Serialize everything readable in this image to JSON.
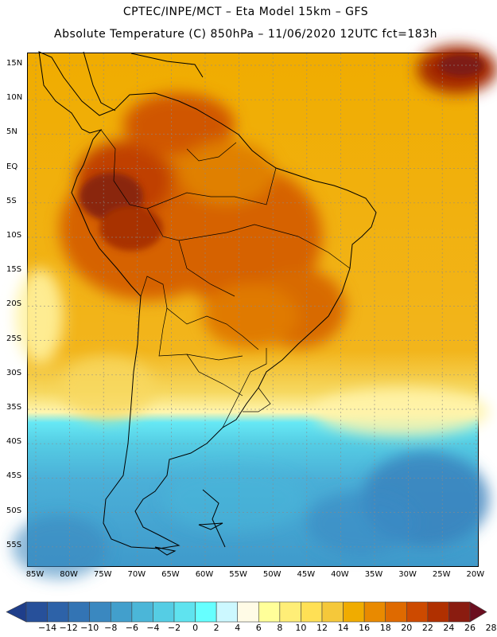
{
  "header": {
    "line1": "CPTEC/INPE/MCT –  Eta Model 15km – GFS",
    "line2": "Absolute Temperature (C) 850hPa – 11/06/2020 12UTC fct=183h"
  },
  "map": {
    "region": "South America",
    "variable": "Absolute Temperature (C)",
    "level": "850hPa",
    "lat_labels": [
      "15N",
      "10N",
      "5N",
      "EQ",
      "5S",
      "10S",
      "15S",
      "20S",
      "25S",
      "30S",
      "35S",
      "40S",
      "45S",
      "50S",
      "55S"
    ],
    "lon_labels": [
      "85W",
      "80W",
      "75W",
      "70W",
      "65W",
      "60W",
      "55W",
      "50W",
      "45W",
      "40W",
      "35W",
      "30W",
      "25W",
      "20W"
    ]
  },
  "colorbar": {
    "labels": [
      "-14",
      "-12",
      "-10",
      "-8",
      "-6",
      "-4",
      "-2",
      "0",
      "2",
      "4",
      "6",
      "8",
      "10",
      "12",
      "14",
      "16",
      "18",
      "20",
      "22",
      "24",
      "26",
      "28"
    ],
    "colors": [
      "#1f3e8a",
      "#27509a",
      "#2d62a8",
      "#3374b4",
      "#3a88c0",
      "#429fcc",
      "#4bb6d8",
      "#55cde4",
      "#5fe3ef",
      "#66ffff",
      "#ccf8ff",
      "#fffbe6",
      "#ffff99",
      "#ffee77",
      "#ffe055",
      "#f5c83a",
      "#f0ac00",
      "#e98a00",
      "#df6a00",
      "#cd4a00",
      "#b03000",
      "#8a1c10",
      "#6b0f20"
    ]
  }
}
